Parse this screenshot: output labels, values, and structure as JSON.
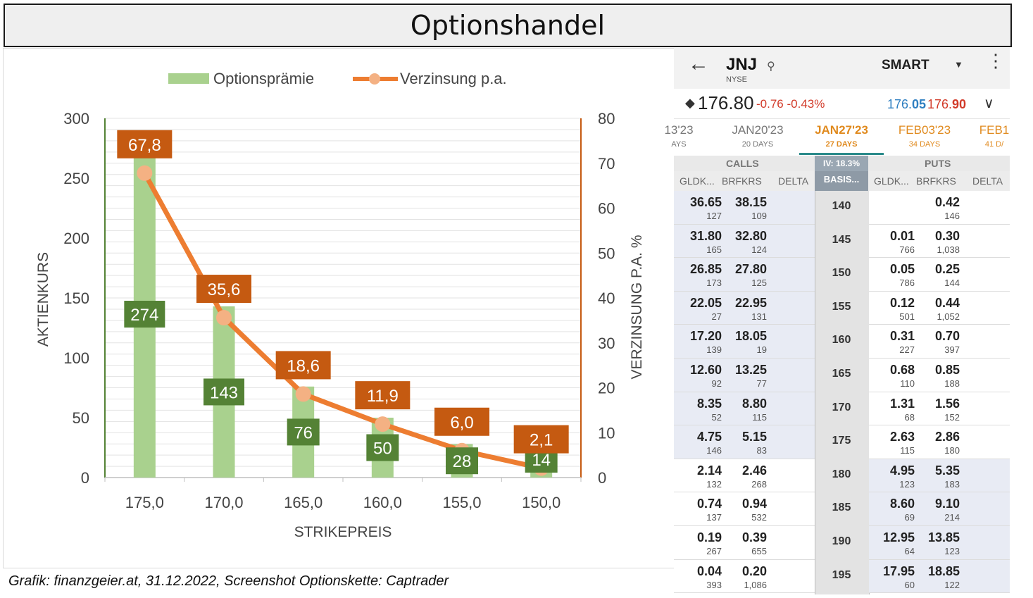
{
  "title": "Optionshandel",
  "caption": "Grafik: finanzgeier.at, 31.12.2022, Screenshot Optionskette: Captrader",
  "colors": {
    "bar": "#a9d18e",
    "bar_label_bg": "#548235",
    "line": "#ed7d31",
    "line_marker": "#f4b183",
    "line_label_bg": "#c55a11"
  },
  "chart_data": {
    "type": "bar",
    "categories": [
      "175,0",
      "170,0",
      "165,0",
      "160,0",
      "155,0",
      "150,0"
    ],
    "series": [
      {
        "name": "Optionsprämie",
        "type": "bar",
        "axis": "left",
        "values": [
          274,
          143,
          76,
          50,
          28,
          14
        ],
        "labels": [
          "274",
          "143",
          "76",
          "50",
          "28",
          "14"
        ]
      },
      {
        "name": "Verzinsung p.a.",
        "type": "line",
        "axis": "right",
        "values": [
          67.8,
          35.6,
          18.6,
          11.9,
          6.0,
          2.1
        ],
        "labels": [
          "67,8",
          "35,6",
          "18,6",
          "11,9",
          "6,0",
          "2,1"
        ]
      }
    ],
    "xlabel": "STRIKEPREIS",
    "ylabel": "AKTIENKURS",
    "y2label": "VERZINSUNG P.A. %",
    "ylim": [
      0,
      300
    ],
    "y2lim": [
      0,
      80
    ],
    "yticks": [
      "0",
      "50",
      "100",
      "150",
      "200",
      "250",
      "300"
    ],
    "y2ticks": [
      "0",
      "10",
      "20",
      "30",
      "40",
      "50",
      "60",
      "70",
      "80"
    ],
    "grid": true,
    "legend": "top"
  },
  "chain": {
    "back_icon": "arrow-left-icon",
    "symbol": "JNJ",
    "exchange": "NYSE",
    "route": "SMART",
    "last": "176.80",
    "change": "-0.76",
    "change_pct": "-0.43%",
    "bid_a": "176.",
    "bid_b": "05",
    "ask_a": "176.",
    "ask_b": "90",
    "tabs": [
      {
        "date": "13'23",
        "days": "AYS",
        "state": "inactive"
      },
      {
        "date": "JAN20'23",
        "days": "20 DAYS",
        "state": "inactive"
      },
      {
        "date": "JAN27'23",
        "days": "27 DAYS",
        "state": "active"
      },
      {
        "date": "FEB03'23",
        "days": "34 DAYS",
        "state": "orange"
      },
      {
        "date": "FEB1",
        "days": "41 D/",
        "state": "orange"
      }
    ],
    "calls_label": "CALLS",
    "puts_label": "PUTS",
    "iv_label": "IV: 18.3%",
    "col_headers": {
      "c_bid": "GLDK...",
      "c_ask": "BRFKRS",
      "c_delta": "DELTA",
      "basis": "BASIS...",
      "p_bid": "GLDK...",
      "p_ask": "BRFKRS",
      "p_delta": "DELTA"
    },
    "rows": [
      {
        "strike": "140",
        "cb": "36.65",
        "cbs": "127",
        "ca": "38.15",
        "cas": "109",
        "pb": "",
        "pbs": "",
        "pa": "0.42",
        "pas": "146",
        "itm_call": true,
        "itm_put": false
      },
      {
        "strike": "145",
        "cb": "31.80",
        "cbs": "165",
        "ca": "32.80",
        "cas": "124",
        "pb": "0.01",
        "pbs": "766",
        "pa": "0.30",
        "pas": "1,038",
        "itm_call": true,
        "itm_put": false
      },
      {
        "strike": "150",
        "cb": "26.85",
        "cbs": "173",
        "ca": "27.80",
        "cas": "125",
        "pb": "0.05",
        "pbs": "786",
        "pa": "0.25",
        "pas": "144",
        "itm_call": true,
        "itm_put": false
      },
      {
        "strike": "155",
        "cb": "22.05",
        "cbs": "27",
        "ca": "22.95",
        "cas": "131",
        "pb": "0.12",
        "pbs": "501",
        "pa": "0.44",
        "pas": "1,052",
        "itm_call": true,
        "itm_put": false
      },
      {
        "strike": "160",
        "cb": "17.20",
        "cbs": "139",
        "ca": "18.05",
        "cas": "19",
        "pb": "0.31",
        "pbs": "227",
        "pa": "0.70",
        "pas": "397",
        "itm_call": true,
        "itm_put": false
      },
      {
        "strike": "165",
        "cb": "12.60",
        "cbs": "92",
        "ca": "13.25",
        "cas": "77",
        "pb": "0.68",
        "pbs": "110",
        "pa": "0.85",
        "pas": "188",
        "itm_call": true,
        "itm_put": false
      },
      {
        "strike": "170",
        "cb": "8.35",
        "cbs": "52",
        "ca": "8.80",
        "cas": "115",
        "pb": "1.31",
        "pbs": "68",
        "pa": "1.56",
        "pas": "152",
        "itm_call": true,
        "itm_put": false
      },
      {
        "strike": "175",
        "cb": "4.75",
        "cbs": "146",
        "ca": "5.15",
        "cas": "83",
        "pb": "2.63",
        "pbs": "115",
        "pa": "2.86",
        "pas": "180",
        "itm_call": true,
        "itm_put": false
      },
      {
        "strike": "180",
        "cb": "2.14",
        "cbs": "132",
        "ca": "2.46",
        "cas": "268",
        "pb": "4.95",
        "pbs": "123",
        "pa": "5.35",
        "pas": "183",
        "itm_call": false,
        "itm_put": true
      },
      {
        "strike": "185",
        "cb": "0.74",
        "cbs": "137",
        "ca": "0.94",
        "cas": "532",
        "pb": "8.60",
        "pbs": "69",
        "pa": "9.10",
        "pas": "214",
        "itm_call": false,
        "itm_put": true
      },
      {
        "strike": "190",
        "cb": "0.19",
        "cbs": "267",
        "ca": "0.39",
        "cas": "655",
        "pb": "12.95",
        "pbs": "64",
        "pa": "13.85",
        "pas": "123",
        "itm_call": false,
        "itm_put": true
      },
      {
        "strike": "195",
        "cb": "0.04",
        "cbs": "393",
        "ca": "0.20",
        "cas": "1,086",
        "pb": "17.95",
        "pbs": "60",
        "pa": "18.85",
        "pas": "122",
        "itm_call": false,
        "itm_put": true
      }
    ]
  }
}
